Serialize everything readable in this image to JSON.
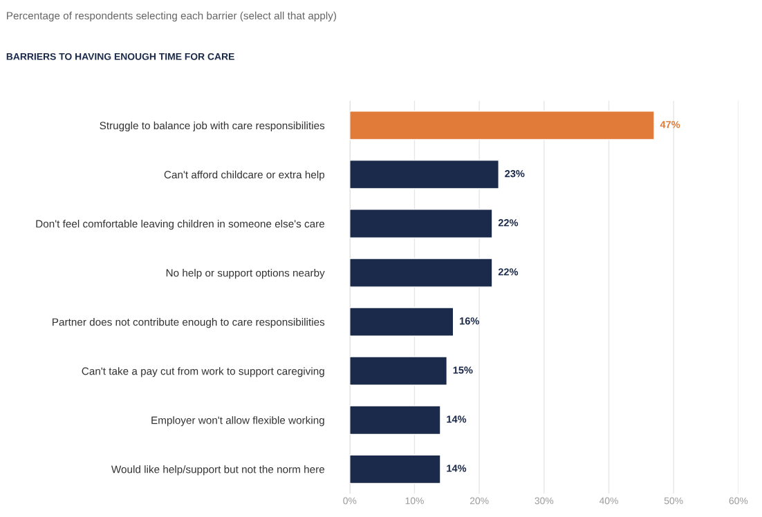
{
  "chart_data": {
    "type": "bar",
    "orientation": "horizontal",
    "subtitle": "Percentage of respondents selecting each barrier (select all that apply)",
    "title": "BARRIERS TO HAVING ENOUGH TIME FOR CARE",
    "categories": [
      "Struggle to balance job with care responsibilities",
      "Can't afford childcare or extra help",
      "Don't feel comfortable leaving children in someone else's care",
      "No help or support options nearby",
      "Partner does not contribute enough to care responsibilities",
      "Can't take a pay cut from work to support caregiving",
      "Employer won't allow flexible working",
      "Would like help/support but not the norm here"
    ],
    "values": [
      47,
      23,
      22,
      22,
      16,
      15,
      14,
      14
    ],
    "value_labels": [
      "47%",
      "23%",
      "22%",
      "22%",
      "16%",
      "15%",
      "14%",
      "14%"
    ],
    "colors": [
      "#e07b39",
      "#1b2a4a",
      "#1b2a4a",
      "#1b2a4a",
      "#1b2a4a",
      "#1b2a4a",
      "#1b2a4a",
      "#1b2a4a"
    ],
    "xlim": [
      0,
      60
    ],
    "xticks": [
      {
        "value": 0,
        "label": "0%"
      },
      {
        "value": 10,
        "label": "10%"
      },
      {
        "value": 20,
        "label": "20%"
      },
      {
        "value": 30,
        "label": "30%"
      },
      {
        "value": 40,
        "label": "40%"
      },
      {
        "value": 50,
        "label": "50%"
      },
      {
        "value": 60,
        "label": "60%"
      }
    ],
    "grid": "x",
    "legend": false
  }
}
